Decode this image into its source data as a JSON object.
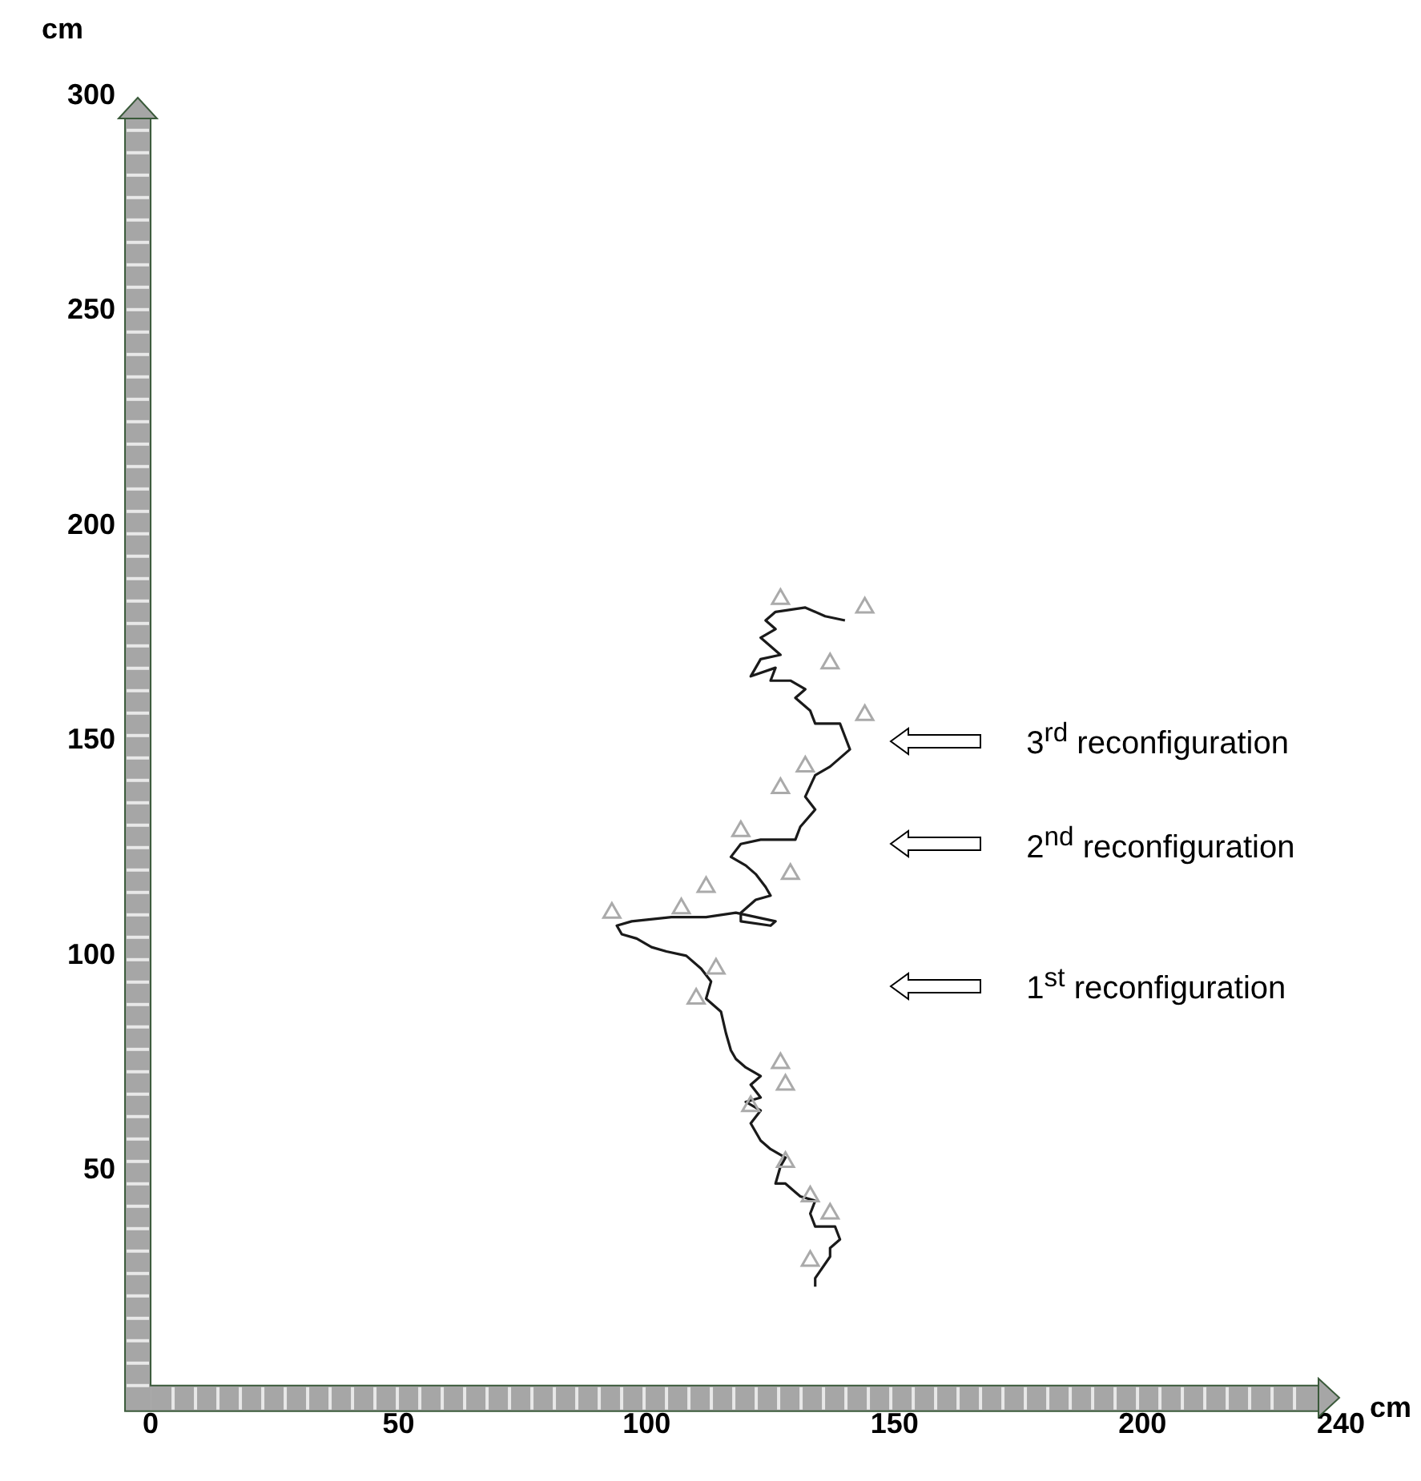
{
  "chart_data": {
    "type": "line",
    "xlabel": "cm",
    "ylabel": "cm",
    "xlim": [
      0,
      240
    ],
    "ylim": [
      0,
      300
    ],
    "xticks": [
      0,
      50,
      100,
      150,
      200,
      240
    ],
    "yticks": [
      50,
      100,
      150,
      200,
      250,
      300
    ],
    "grid": false,
    "legend": false,
    "marker": "none",
    "line_style": "solid",
    "series": [
      {
        "color": "#1a1a1a",
        "x": [
          134,
          134,
          137,
          137,
          139,
          138,
          134,
          133,
          134,
          131,
          130,
          128,
          126,
          127,
          128,
          125,
          123,
          122,
          121,
          123,
          120,
          123,
          121,
          123,
          120,
          118,
          117,
          116,
          115,
          112,
          113,
          111,
          108,
          104,
          101,
          98,
          95,
          94,
          97,
          105,
          112,
          118,
          126,
          125,
          119,
          119,
          122,
          125,
          124,
          122,
          120,
          117,
          119,
          123,
          130,
          131,
          134,
          132,
          134,
          137,
          141,
          140,
          139,
          134,
          133,
          130,
          132,
          129,
          125,
          126,
          121,
          123,
          127,
          125,
          123,
          126,
          124,
          126,
          132,
          136,
          140
        ],
        "values": [
          23,
          25,
          30,
          32,
          34,
          37,
          37,
          40,
          43,
          44,
          45,
          47,
          47,
          51,
          53,
          55,
          57,
          59,
          61,
          64,
          66,
          67,
          70,
          72,
          74,
          76,
          78,
          82,
          87,
          90,
          94,
          97,
          100,
          101,
          102,
          104,
          105,
          107,
          108,
          109,
          109,
          110,
          108,
          107,
          108,
          110,
          113,
          114,
          116,
          119,
          121,
          123,
          126,
          127,
          127,
          130,
          134,
          137,
          142,
          144,
          148,
          151,
          154,
          154,
          157,
          160,
          162,
          164,
          164,
          167,
          165,
          169,
          170,
          172,
          174,
          176,
          178,
          180,
          181,
          179,
          178
        ]
      },
      {
        "type": "scatter",
        "marker": "triangle",
        "color": "#aaaaaa",
        "x": [
          127,
          144,
          137,
          144,
          132,
          127,
          119,
          129,
          112,
          107,
          93,
          114,
          110,
          127,
          128,
          121,
          128,
          133,
          137,
          133
        ],
        "values": [
          183,
          181,
          168,
          156,
          144,
          139,
          129,
          119,
          116,
          111,
          110,
          97,
          90,
          75,
          70,
          65,
          52,
          44,
          40,
          29
        ]
      }
    ],
    "annotations": [
      "3$^{rd}$ reconfiguration",
      "2$^{nd}$ reconfiguration",
      "1$^{st}$ reconfiguration"
    ]
  }
}
